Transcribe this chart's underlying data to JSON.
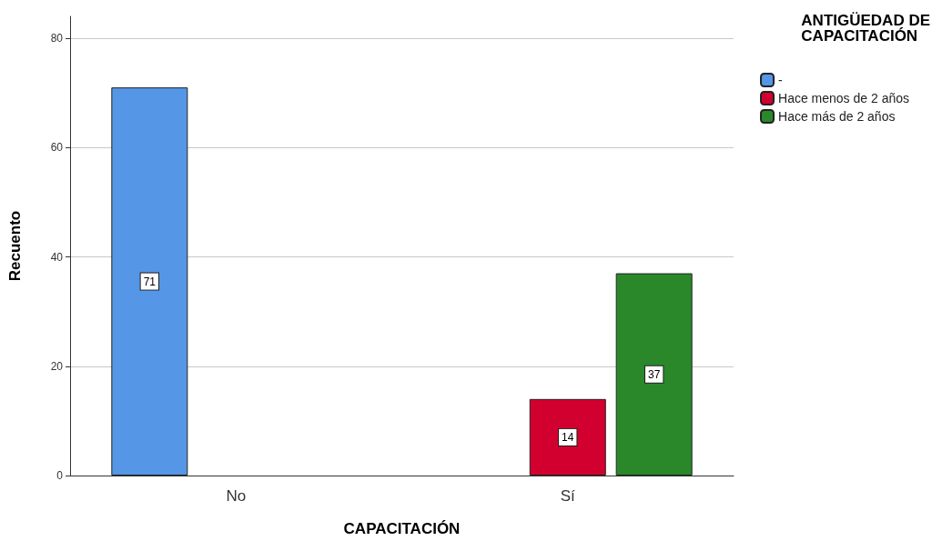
{
  "chart_data": {
    "type": "bar",
    "xlabel": "CAPACITACIÓN",
    "ylabel": "Recuento",
    "legend_title": "ANTIGÜEDAD DE\nCAPACITACIÓN",
    "categories": [
      "No",
      "Sí"
    ],
    "series": [
      {
        "name": "-",
        "color": "#5596e6",
        "values": [
          71,
          null
        ]
      },
      {
        "name": "Hace menos de 2 años",
        "color": "#d2002f",
        "values": [
          null,
          14
        ]
      },
      {
        "name": "Hace más de 2 años",
        "color": "#2a882a",
        "values": [
          null,
          37
        ]
      }
    ],
    "ylim": [
      0,
      84
    ],
    "yticks": [
      0,
      20,
      40,
      60,
      80
    ],
    "grid": "y",
    "legend": "top right",
    "data_labels": true
  }
}
